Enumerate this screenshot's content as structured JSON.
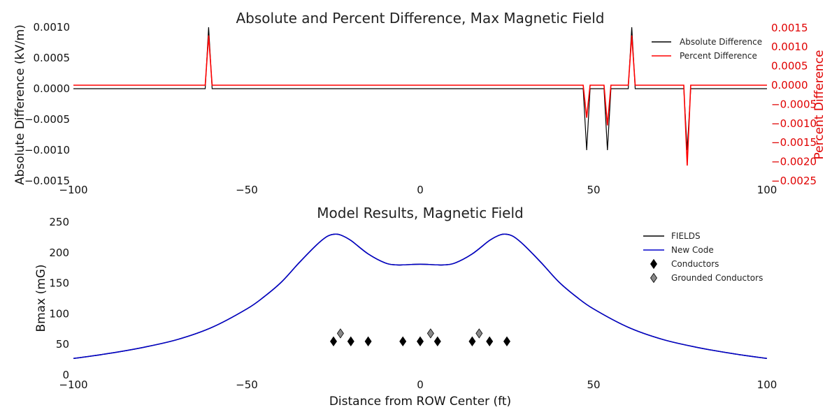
{
  "chart_data": [
    {
      "type": "line",
      "title": "Absolute and Percent Difference, Max Magnetic Field",
      "xlabel": "",
      "ylabel": "Absolute Difference (kV/m)",
      "y2label": "Percent Difference",
      "xlim": [
        -100,
        100
      ],
      "ylim": [
        -0.0015,
        0.0011
      ],
      "y2lim": [
        -0.0025,
        0.0016
      ],
      "xticks": [
        "−100",
        "−50",
        "0",
        "50",
        "100"
      ],
      "xtick_values": [
        -100,
        -50,
        0,
        50,
        100
      ],
      "yticks": [
        "0.0010",
        "0.0005",
        "0.0000",
        "−0.0005",
        "−0.0010",
        "−0.0015"
      ],
      "ytick_values": [
        0.001,
        0.0005,
        0.0,
        -0.0005,
        -0.001,
        -0.0015
      ],
      "y2ticks": [
        "0.0015",
        "0.0010",
        "0.0005",
        "0.0000",
        "−0.0005",
        "−0.0010",
        "−0.0015",
        "−0.0020",
        "−0.0025"
      ],
      "y2tick_values": [
        0.0015,
        0.001,
        0.0005,
        0.0,
        -0.0005,
        -0.001,
        -0.0015,
        -0.002,
        -0.0025
      ],
      "legend_position": "top-right",
      "series": [
        {
          "name": "Absolute Difference",
          "color": "#000000",
          "axis": "left",
          "x": [
            -100,
            -62,
            -61,
            -60,
            -59,
            47,
            48,
            49,
            53,
            54,
            55,
            60,
            61,
            62,
            76,
            77,
            78,
            100
          ],
          "y": [
            0,
            0,
            0.001,
            0,
            0,
            0,
            -0.001,
            0,
            0,
            -0.001,
            0,
            0,
            0.001,
            0,
            0,
            -0.001,
            0,
            0
          ]
        },
        {
          "name": "Percent Difference",
          "color": "#ff0000",
          "axis": "right",
          "x": [
            -100,
            -62,
            -61,
            -60,
            -59,
            47,
            48,
            49,
            53,
            54,
            55,
            60,
            61,
            62,
            76,
            77,
            78,
            100
          ],
          "y": [
            0,
            0,
            0.0013,
            0,
            0,
            0,
            -0.00085,
            0,
            0,
            -0.00105,
            0,
            0,
            0.0013,
            0,
            0,
            -0.0021,
            0,
            0
          ]
        }
      ]
    },
    {
      "type": "line",
      "title": "Model Results, Magnetic Field",
      "xlabel": "Distance from ROW Center (ft)",
      "ylabel": "Bmax (mG)",
      "xlim": [
        -100,
        100
      ],
      "ylim": [
        0,
        250
      ],
      "xticks": [
        "−100",
        "−50",
        "0",
        "50",
        "100"
      ],
      "xtick_values": [
        -100,
        -50,
        0,
        50,
        100
      ],
      "yticks": [
        "250",
        "200",
        "150",
        "100",
        "50",
        "0"
      ],
      "ytick_values": [
        250,
        200,
        150,
        100,
        50,
        0
      ],
      "legend_position": "top-right",
      "series": [
        {
          "name": "FIELDS",
          "color": "#000000",
          "x": [
            -100,
            -90,
            -80,
            -70,
            -60,
            -50,
            -45,
            -40,
            -35,
            -30,
            -27,
            -25,
            -23,
            -20,
            -15,
            -10,
            -7,
            -5,
            0,
            5,
            7,
            10,
            15,
            20,
            23,
            25,
            27,
            30,
            35,
            40,
            45,
            50,
            60,
            70,
            80,
            90,
            100
          ],
          "y": [
            27,
            35,
            45,
            58,
            78,
            108,
            128,
            152,
            183,
            212,
            226,
            230,
            229,
            220,
            198,
            183,
            180,
            180,
            181,
            180,
            180,
            183,
            198,
            220,
            229,
            230,
            226,
            212,
            183,
            152,
            128,
            108,
            78,
            58,
            45,
            35,
            27
          ]
        },
        {
          "name": "New Code",
          "color": "#0000cc",
          "x": [
            -100,
            -90,
            -80,
            -70,
            -60,
            -50,
            -45,
            -40,
            -35,
            -30,
            -27,
            -25,
            -23,
            -20,
            -15,
            -10,
            -7,
            -5,
            0,
            5,
            7,
            10,
            15,
            20,
            23,
            25,
            27,
            30,
            35,
            40,
            45,
            50,
            60,
            70,
            80,
            90,
            100
          ],
          "y": [
            27,
            35,
            45,
            58,
            78,
            108,
            128,
            152,
            183,
            212,
            226,
            230,
            229,
            220,
            198,
            183,
            180,
            180,
            181,
            180,
            180,
            183,
            198,
            220,
            229,
            230,
            226,
            212,
            183,
            152,
            128,
            108,
            78,
            58,
            45,
            35,
            27
          ]
        },
        {
          "name": "Conductors",
          "type": "scatter",
          "color": "#000000",
          "marker": "diamond",
          "x": [
            -25,
            -20,
            -15,
            -5,
            0,
            5,
            15,
            20,
            25
          ],
          "y": [
            55,
            55,
            55,
            55,
            55,
            55,
            55,
            55,
            55
          ]
        },
        {
          "name": "Grounded Conductors",
          "type": "scatter",
          "color": "#888888",
          "marker": "diamond",
          "x": [
            -23,
            3,
            17
          ],
          "y": [
            68,
            68,
            68
          ]
        }
      ]
    }
  ]
}
